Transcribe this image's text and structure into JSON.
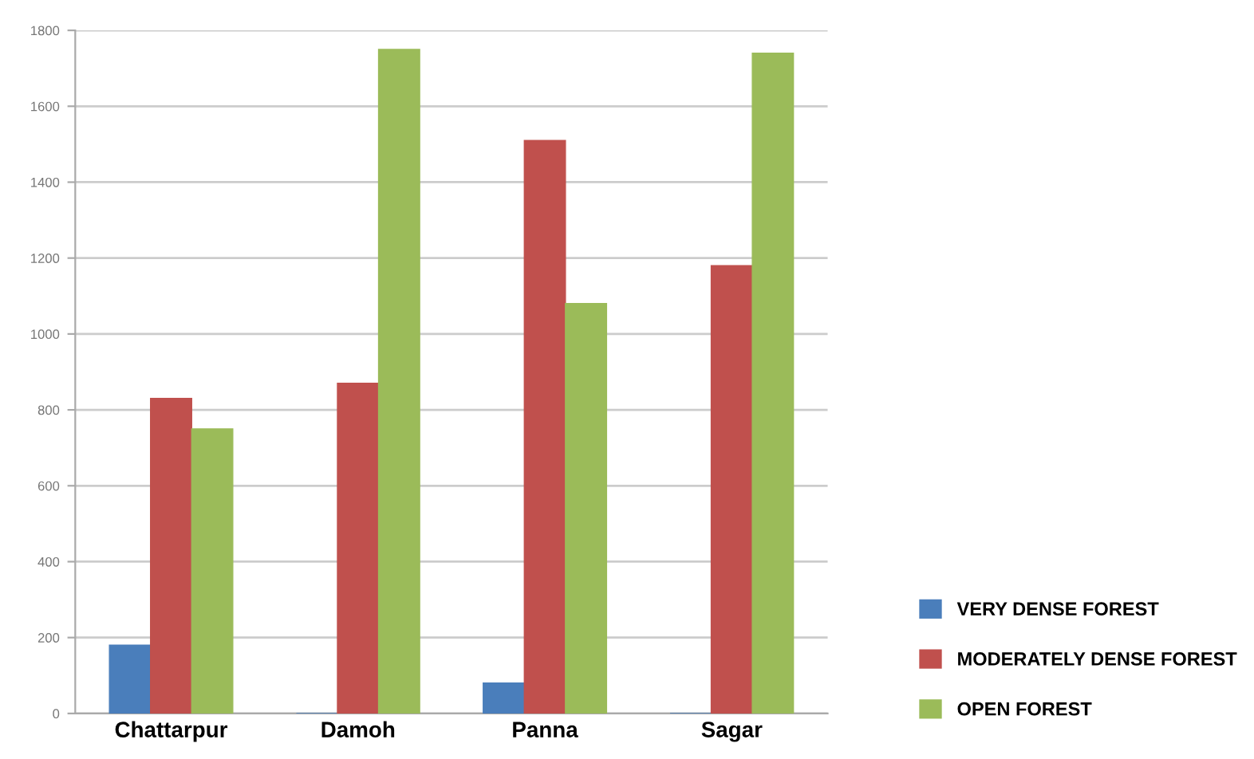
{
  "chart_data": {
    "type": "bar",
    "categories": [
      "Chattarpur",
      "Damoh",
      "Panna",
      "Sagar"
    ],
    "series": [
      {
        "name": "VERY DENSE FOREST",
        "color": "#4a7ebb",
        "values": [
          180,
          0,
          80,
          0
        ]
      },
      {
        "name": "MODERATELY DENSE FOREST",
        "color": "#c0504d",
        "values": [
          830,
          870,
          1510,
          1180
        ]
      },
      {
        "name": "OPEN FOREST",
        "color": "#9bbb59",
        "values": [
          750,
          1750,
          1080,
          1740
        ]
      }
    ],
    "ylim": [
      0,
      1800
    ],
    "yticks": [
      0,
      200,
      400,
      600,
      800,
      1000,
      1200,
      1400,
      1600,
      1800
    ],
    "grid": "y",
    "legend": "bottom right"
  }
}
